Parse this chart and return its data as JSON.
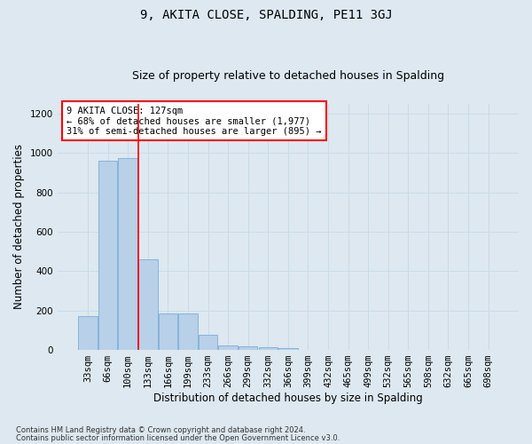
{
  "title": "9, AKITA CLOSE, SPALDING, PE11 3GJ",
  "subtitle": "Size of property relative to detached houses in Spalding",
  "xlabel": "Distribution of detached houses by size in Spalding",
  "ylabel": "Number of detached properties",
  "bar_color": "#b8d0e8",
  "bar_edge_color": "#7aaed6",
  "background_color": "#dde8f0",
  "categories": [
    "33sqm",
    "66sqm",
    "100sqm",
    "133sqm",
    "166sqm",
    "199sqm",
    "233sqm",
    "266sqm",
    "299sqm",
    "332sqm",
    "366sqm",
    "399sqm",
    "432sqm",
    "465sqm",
    "499sqm",
    "532sqm",
    "565sqm",
    "598sqm",
    "632sqm",
    "665sqm",
    "698sqm"
  ],
  "values": [
    170,
    960,
    975,
    460,
    185,
    185,
    75,
    25,
    20,
    15,
    10,
    0,
    0,
    0,
    0,
    0,
    0,
    0,
    0,
    0,
    0
  ],
  "red_line_x": 3,
  "annotation_title": "9 AKITA CLOSE: 127sqm",
  "annotation_line1": "← 68% of detached houses are smaller (1,977)",
  "annotation_line2": "31% of semi-detached houses are larger (895) →",
  "ylim": [
    0,
    1250
  ],
  "yticks": [
    0,
    200,
    400,
    600,
    800,
    1000,
    1200
  ],
  "footnote1": "Contains HM Land Registry data © Crown copyright and database right 2024.",
  "footnote2": "Contains public sector information licensed under the Open Government Licence v3.0.",
  "grid_color": "#c8d8e8",
  "title_fontsize": 10,
  "subtitle_fontsize": 9,
  "axis_label_fontsize": 8.5,
  "tick_fontsize": 7.5
}
